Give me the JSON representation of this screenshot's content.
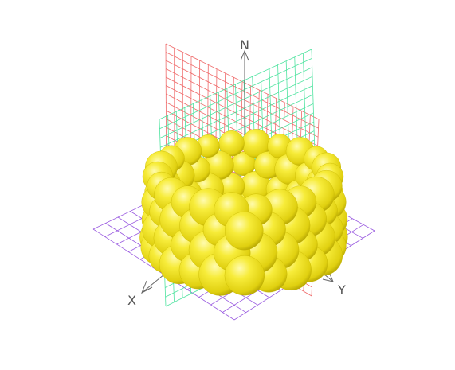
{
  "axes": {
    "z_label": "N",
    "x_label": "X",
    "y_label": "Y"
  },
  "colors": {
    "background": "#ffffff",
    "floor_grid": "#9a5be0",
    "xz_plane_grid": "#ef6a6a",
    "yz_plane_grid": "#4fe3a0",
    "axis_lines": "#666666",
    "sphere_base": "#f2e62a",
    "sphere_highlight": "#fffbb0",
    "sphere_shadow": "#a99a00"
  }
}
